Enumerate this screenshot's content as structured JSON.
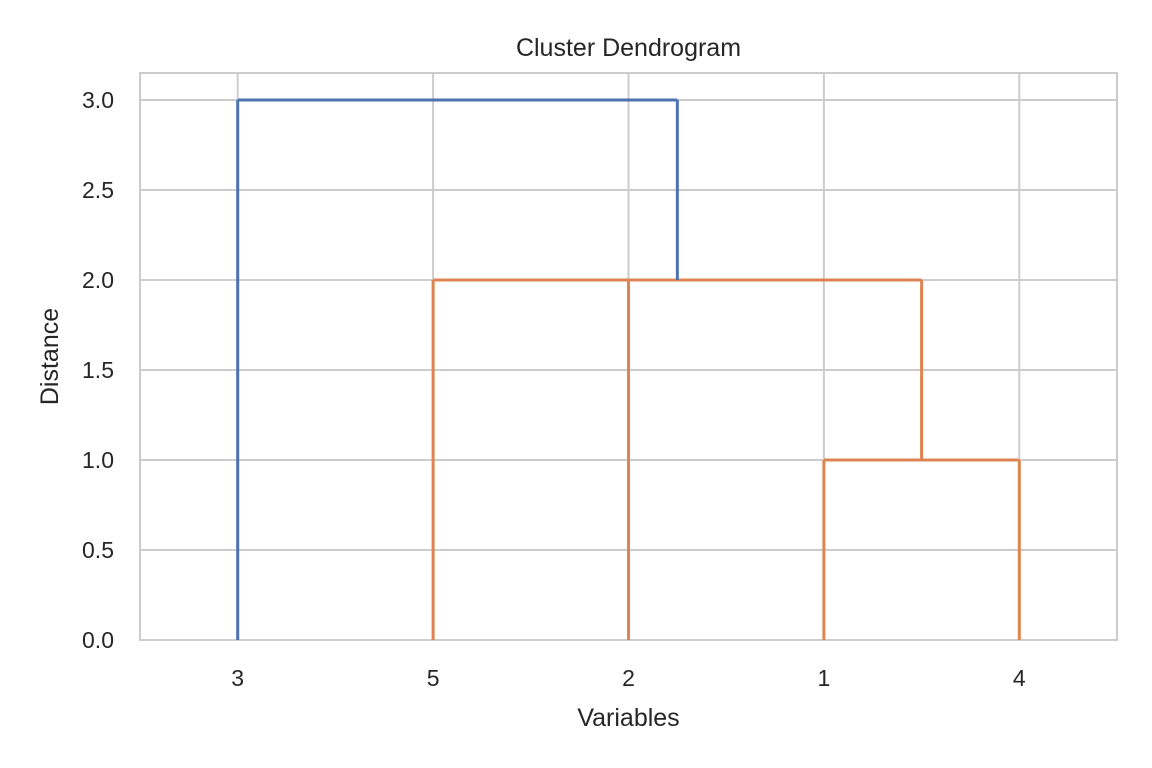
{
  "chart_data": {
    "type": "dendrogram",
    "title": "Cluster Dendrogram",
    "xlabel": "Variables",
    "ylabel": "Distance",
    "leaf_order": [
      "3",
      "5",
      "2",
      "1",
      "4"
    ],
    "ylim": [
      0,
      3.15
    ],
    "yticks": [
      0.0,
      0.5,
      1.0,
      1.5,
      2.0,
      2.5,
      3.0
    ],
    "ytick_labels": [
      "0.0",
      "0.5",
      "1.0",
      "1.5",
      "2.0",
      "2.5",
      "3.0"
    ],
    "grid": true,
    "merges": [
      {
        "members": [
          "1",
          "4"
        ],
        "height": 1.0,
        "color": "#dd8452"
      },
      {
        "members": [
          "5",
          "2",
          "1",
          "4"
        ],
        "height": 2.0,
        "color": "#dd8452"
      },
      {
        "members": [
          "3",
          "5",
          "2",
          "1",
          "4"
        ],
        "height": 3.0,
        "color": "#4c72b0"
      }
    ]
  }
}
